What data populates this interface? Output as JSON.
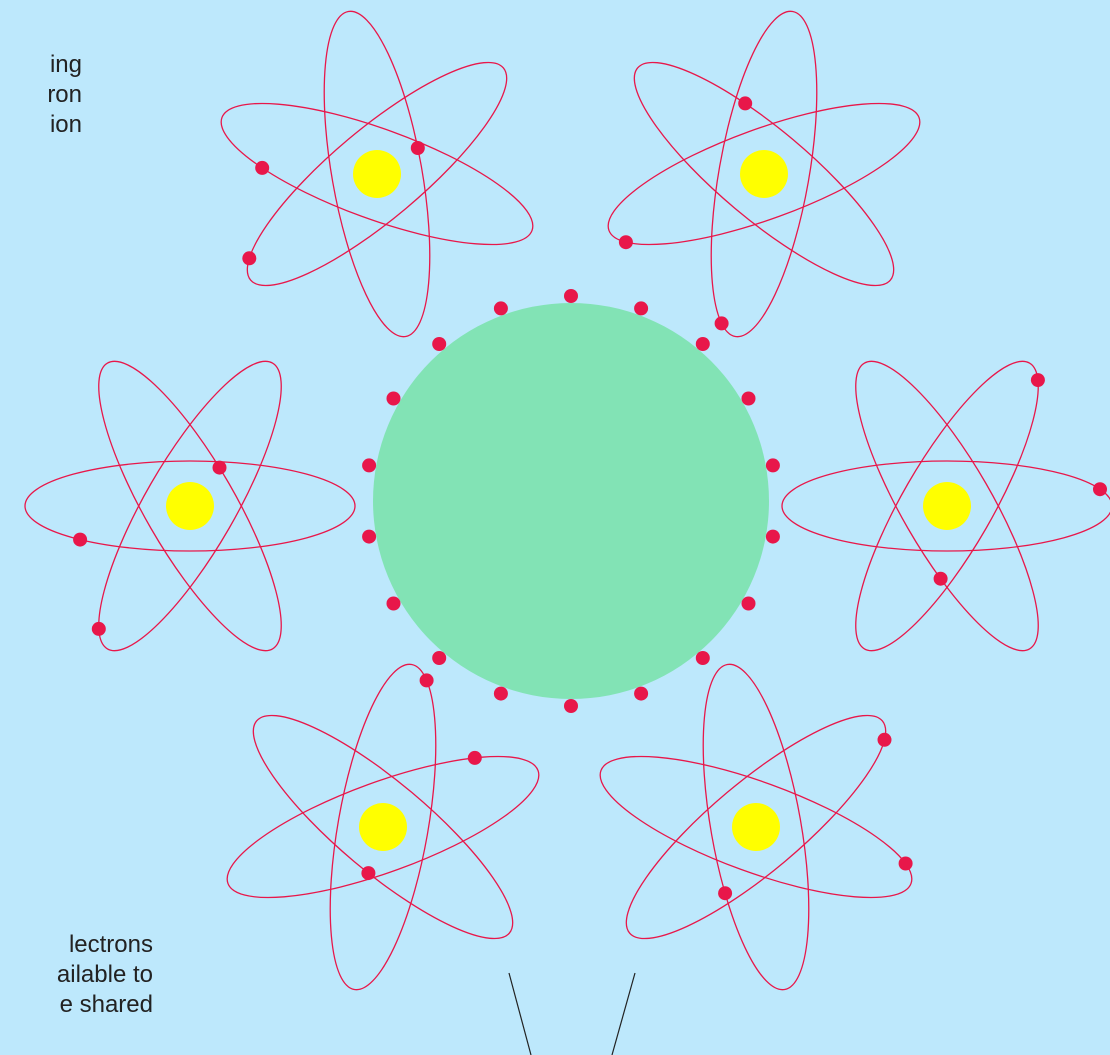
{
  "diagram": {
    "labels": {
      "top": [
        "ing",
        "ron",
        "ion"
      ],
      "bottom": [
        "lectrons",
        "ailable to",
        "e shared"
      ]
    },
    "colors": {
      "background": "#bde8fc",
      "orbit": "#e8174a",
      "electron": "#e8174a",
      "nucleus": "#ffff00",
      "shared_cloud": "#82e3b5",
      "pointer": "#222222"
    },
    "atom_count": 6,
    "orbits_per_atom": 3,
    "electrons_per_atom": 3,
    "shared_electron_count": 18
  }
}
